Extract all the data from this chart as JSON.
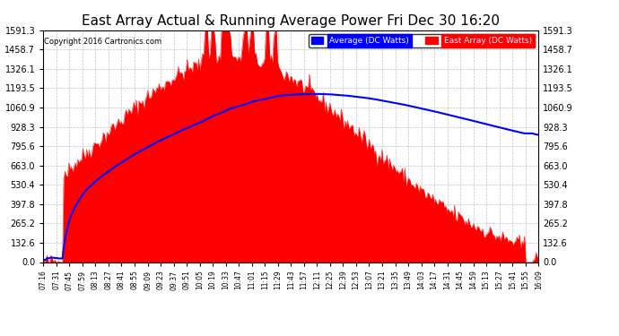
{
  "title": "East Array Actual & Running Average Power Fri Dec 30 16:20",
  "copyright": "Copyright 2016 Cartronics.com",
  "legend_avg": "Average (DC Watts)",
  "legend_east": "East Array (DC Watts)",
  "ymax": 1591.3,
  "yticks": [
    0.0,
    132.6,
    265.2,
    397.8,
    530.4,
    663.0,
    795.6,
    928.3,
    1060.9,
    1193.5,
    1326.1,
    1458.7,
    1591.3
  ],
  "bg_color": "#000000",
  "plot_bg_color": "#000000",
  "grid_color": "#555555",
  "red_color": "#ff0000",
  "blue_color": "#0000ff",
  "title_color": "#ffffff",
  "label_color": "#000000",
  "xtick_labels": [
    "07:16",
    "07:31",
    "07:45",
    "07:59",
    "08:13",
    "08:27",
    "08:41",
    "08:55",
    "09:09",
    "09:23",
    "09:37",
    "09:51",
    "10:05",
    "10:19",
    "10:33",
    "10:47",
    "11:01",
    "11:15",
    "11:29",
    "11:43",
    "11:57",
    "12:11",
    "12:25",
    "12:39",
    "12:53",
    "13:07",
    "13:21",
    "13:35",
    "13:49",
    "14:03",
    "14:17",
    "14:31",
    "14:45",
    "14:59",
    "15:13",
    "15:27",
    "15:41",
    "15:55",
    "16:09"
  ]
}
